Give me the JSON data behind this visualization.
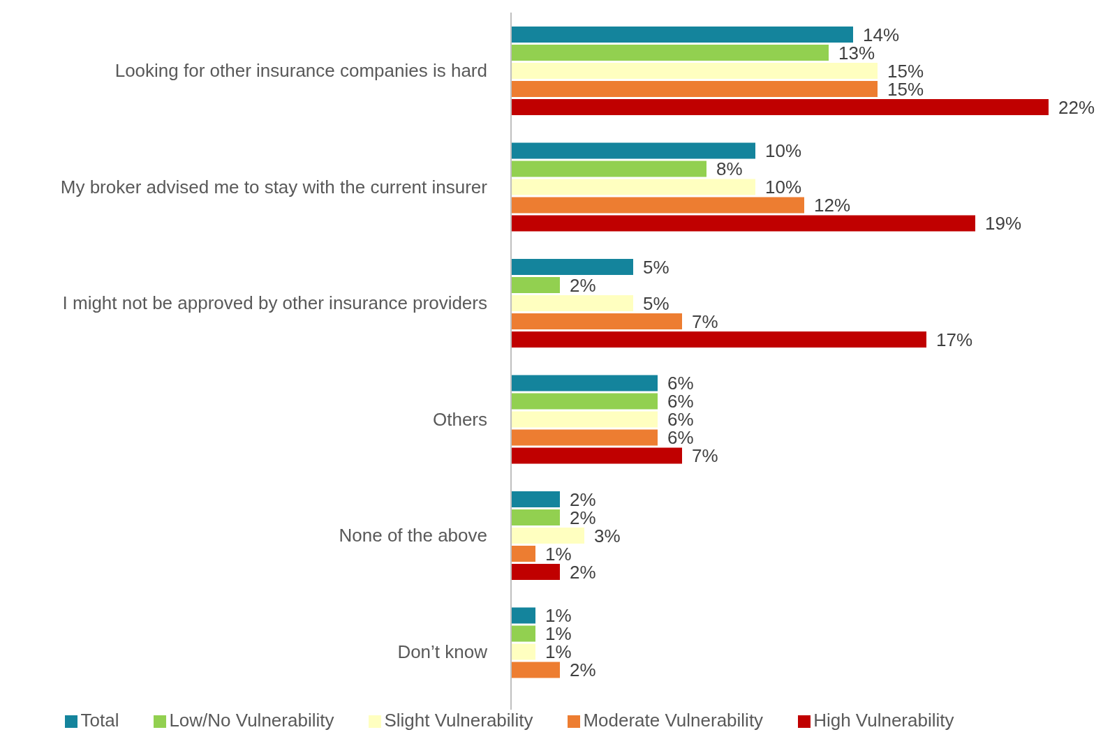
{
  "chart_data": {
    "type": "bar",
    "orientation": "horizontal",
    "categories": [
      "Looking for other insurance companies is hard",
      "My broker advised me to stay with the current insurer",
      "I might not be approved by other insurance providers",
      "Others",
      "None of the above",
      "Don’t know"
    ],
    "series": [
      {
        "name": "Total",
        "color": "#14849c",
        "values": [
          14,
          10,
          5,
          6,
          2,
          1
        ],
        "value_labels": [
          "14%",
          "10%",
          "5%",
          "6%",
          "2%",
          "1%"
        ]
      },
      {
        "name": "Low/No Vulnerability",
        "color": "#92d050",
        "values": [
          13,
          8,
          2,
          6,
          2,
          1
        ],
        "value_labels": [
          "13%",
          "8%",
          "2%",
          "6%",
          "2%",
          "1%"
        ]
      },
      {
        "name": "Slight Vulnerability",
        "color": "#ffffc0",
        "values": [
          15,
          10,
          5,
          6,
          3,
          1
        ],
        "value_labels": [
          "15%",
          "10%",
          "5%",
          "6%",
          "3%",
          "1%"
        ]
      },
      {
        "name": "Moderate Vulnerability",
        "color": "#ed7d31",
        "values": [
          15,
          12,
          7,
          6,
          1,
          2
        ],
        "value_labels": [
          "15%",
          "12%",
          "7%",
          "6%",
          "1%",
          "2%"
        ]
      },
      {
        "name": "High Vulnerability",
        "color": "#c00000",
        "values": [
          22,
          19,
          17,
          7,
          2,
          null
        ],
        "value_labels": [
          "22%",
          "19%",
          "17%",
          "7%",
          "2%",
          null
        ]
      }
    ],
    "legend": "bottom",
    "grid": false
  }
}
